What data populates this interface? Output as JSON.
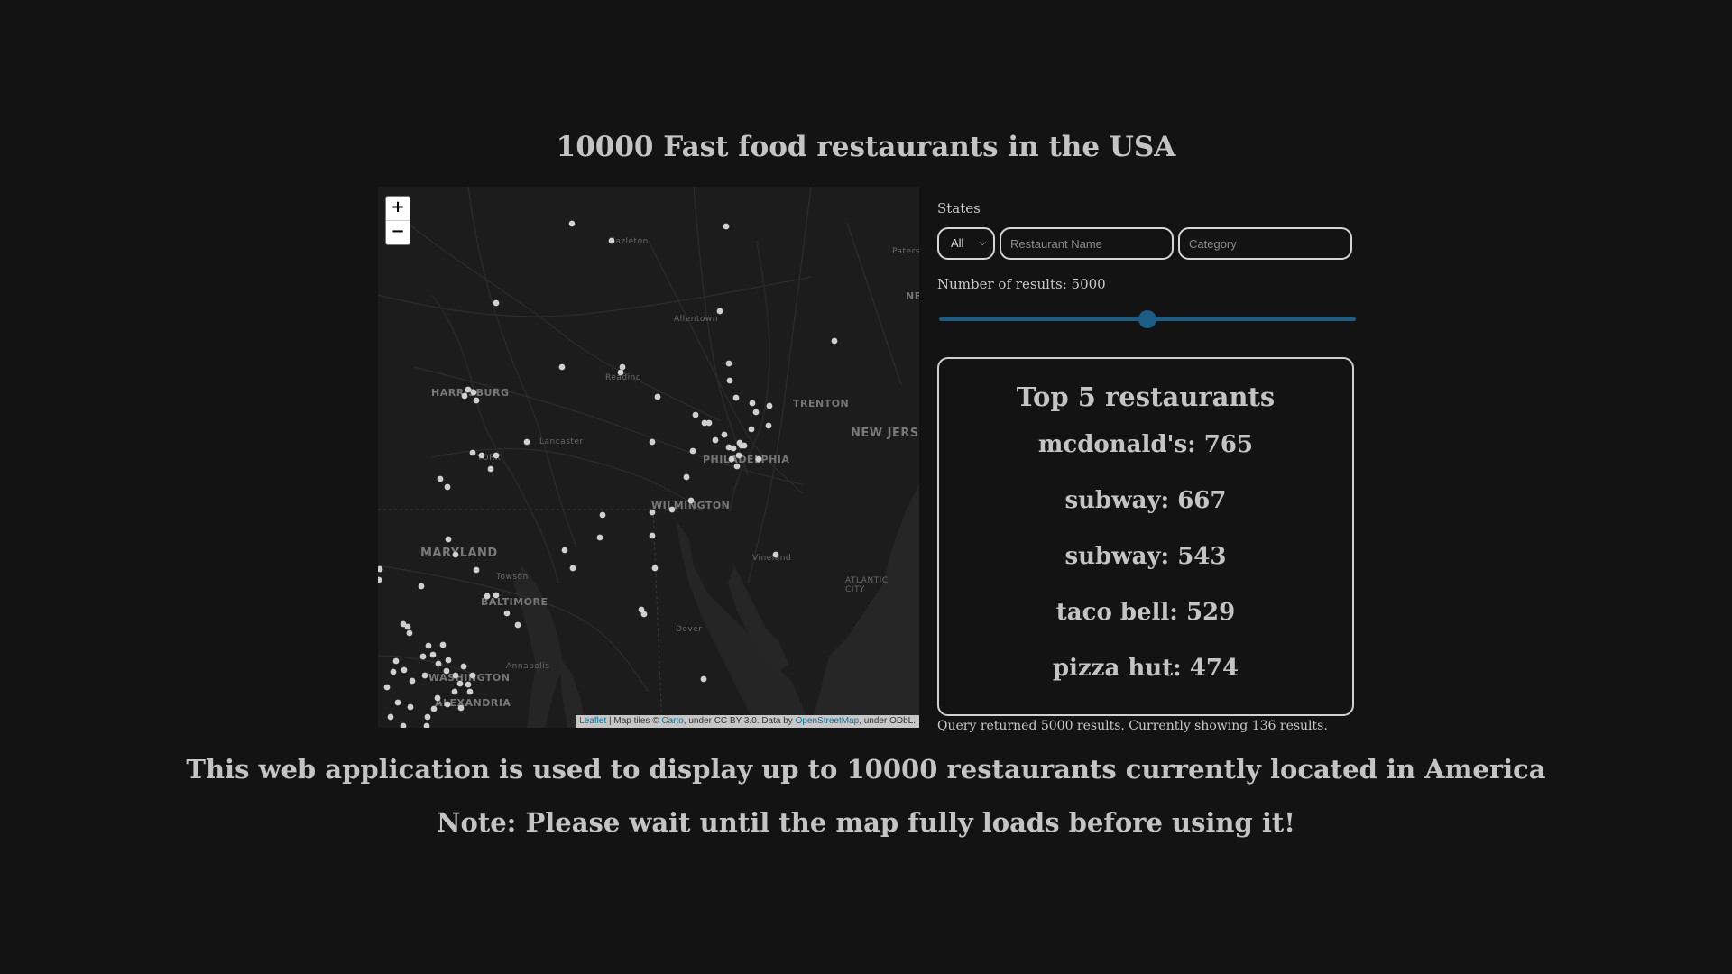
{
  "title": "10000 Fast food restaurants in the USA",
  "map": {
    "zoom_in": "+",
    "zoom_out": "−",
    "labels": {
      "new_jersey": "NEW JERSEY",
      "maryland": "MARYLAND",
      "trenton": "TRENTON",
      "philadelphia": "PHILADELPHIA",
      "wilmington": "WILMINGTON",
      "harrisburg": "HARRISBURG",
      "baltimore": "BALTIMORE",
      "washington": "WASHINGTON",
      "alexandria": "ALEXANDRIA",
      "atlantic_city": "ATLANTIC CITY",
      "york": "YORK",
      "allentown": "Allentown",
      "reading": "Reading",
      "lancaster": "Lancaster",
      "hazleton": "Hazleton",
      "paterson": "Paters",
      "vineland": "Vineland",
      "dover": "Dover",
      "towson": "Towson",
      "annapolis": "Annapolis",
      "ne": "NE"
    },
    "attribution": {
      "leaflet": "Leaflet",
      "sep": " | Map tiles © ",
      "carto": "Carto",
      "mid": ", under CC BY 3.0. Data by ",
      "osm": "OpenStreetMap",
      "end": ", under ODbL."
    }
  },
  "controls": {
    "states_label": "States",
    "state_select_value": "All",
    "restaurant_placeholder": "Restaurant Name",
    "category_placeholder": "Category",
    "results_label": "Number of results: 5000",
    "slider_fraction": 0.5
  },
  "top5": {
    "title": "Top 5 restaurants",
    "items": [
      "mcdonald's: 765",
      "subway: 667",
      "subway: 543",
      "taco bell: 529",
      "pizza hut: 474"
    ]
  },
  "query_info": "Query returned 5000 results. Currently showing 136 results.",
  "footer": {
    "description": "This web application is used to display up to 10000 restaurants currently located in America",
    "note": "Note: Please wait until the map fully loads before using it!"
  },
  "colors": {
    "background": "#131313",
    "text": "#c4c4c4",
    "accent": "#1a5d86",
    "marker": "#d0d0d0"
  }
}
